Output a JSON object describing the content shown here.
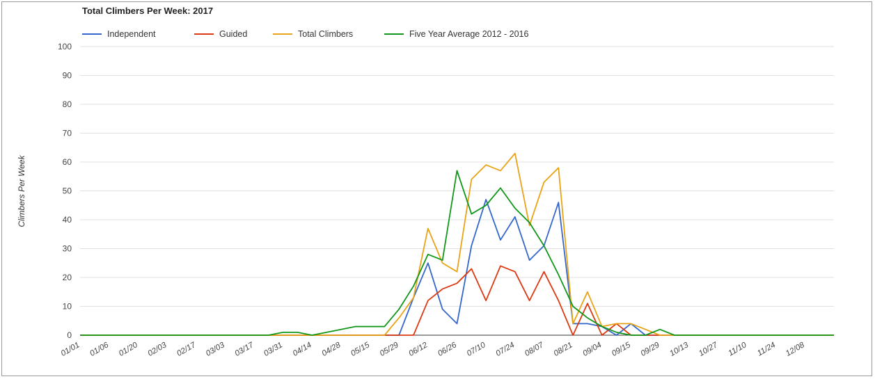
{
  "chart_data": {
    "type": "line",
    "title": "Total Climbers Per Week: 2017",
    "xlabel": "",
    "ylabel": "Climbers Per Week",
    "ylim": [
      0,
      100
    ],
    "yticks": [
      0,
      10,
      20,
      30,
      40,
      50,
      60,
      70,
      80,
      90,
      100
    ],
    "grid": true,
    "legend_position": "top-left",
    "x_tick_labels": [
      "01/01",
      "01/06",
      "01/20",
      "02/03",
      "02/17",
      "03/03",
      "03/17",
      "03/31",
      "04/14",
      "04/28",
      "05/15",
      "05/29",
      "06/12",
      "06/26",
      "07/10",
      "07/24",
      "08/07",
      "08/21",
      "09/04",
      "09/15",
      "09/29",
      "10/13",
      "10/27",
      "11/10",
      "11/24",
      "12/08"
    ],
    "x_tick_positions": [
      0,
      2,
      4,
      6,
      8,
      10,
      12,
      14,
      16,
      18,
      20,
      22,
      24,
      26,
      28,
      30,
      32,
      34,
      36,
      38,
      40,
      42,
      44,
      46,
      48,
      50
    ],
    "x": [
      0,
      1,
      2,
      3,
      4,
      5,
      6,
      7,
      8,
      9,
      10,
      11,
      12,
      13,
      14,
      15,
      16,
      17,
      18,
      19,
      20,
      21,
      22,
      23,
      24,
      25,
      26,
      27,
      28,
      29,
      30,
      31,
      32,
      33,
      34,
      35,
      36,
      37,
      38,
      39,
      40,
      41,
      42,
      43,
      44,
      45,
      46,
      47,
      48,
      49,
      50,
      51,
      52
    ],
    "series": [
      {
        "name": "Independent",
        "color": "#3366cc",
        "values": [
          0,
          0,
          0,
          0,
          0,
          0,
          0,
          0,
          0,
          0,
          0,
          0,
          0,
          0,
          0,
          0,
          0,
          0,
          0,
          0,
          0,
          0,
          0,
          13,
          25,
          9,
          4,
          31,
          47,
          33,
          41,
          26,
          31,
          46,
          4,
          4,
          3,
          0,
          4,
          0,
          0,
          0,
          0,
          0,
          0,
          0,
          0,
          0,
          0,
          0,
          0,
          0,
          0
        ]
      },
      {
        "name": "Guided",
        "color": "#dc3912",
        "values": [
          0,
          0,
          0,
          0,
          0,
          0,
          0,
          0,
          0,
          0,
          0,
          0,
          0,
          0,
          0,
          0,
          0,
          0,
          0,
          0,
          0,
          0,
          0,
          0,
          12,
          16,
          18,
          23,
          12,
          24,
          22,
          12,
          22,
          12,
          0,
          11,
          0,
          4,
          0,
          0,
          0,
          0,
          0,
          0,
          0,
          0,
          0,
          0,
          0,
          0,
          0,
          0,
          0
        ]
      },
      {
        "name": "Total Climbers",
        "color": "#e8a317",
        "values": [
          0,
          0,
          0,
          0,
          0,
          0,
          0,
          0,
          0,
          0,
          0,
          0,
          0,
          0,
          0,
          0,
          0,
          0,
          0,
          0,
          0,
          0,
          6,
          13,
          37,
          25,
          22,
          54,
          59,
          57,
          63,
          38,
          53,
          58,
          4,
          15,
          3,
          4,
          4,
          2,
          0,
          0,
          0,
          0,
          0,
          0,
          0,
          0,
          0,
          0,
          0,
          0,
          0
        ]
      },
      {
        "name": "Five Year Average 2012 - 2016",
        "color": "#109618",
        "values": [
          0,
          0,
          0,
          0,
          0,
          0,
          0,
          0,
          0,
          0,
          0,
          0,
          0,
          0,
          1,
          1,
          0,
          1,
          2,
          3,
          3,
          3,
          9,
          17,
          28,
          26,
          57,
          42,
          45,
          51,
          44,
          39,
          31,
          21,
          10,
          6,
          3,
          1,
          0,
          0,
          2,
          0,
          0,
          0,
          0,
          0,
          0,
          0,
          0,
          0,
          0,
          0,
          0
        ]
      }
    ]
  }
}
